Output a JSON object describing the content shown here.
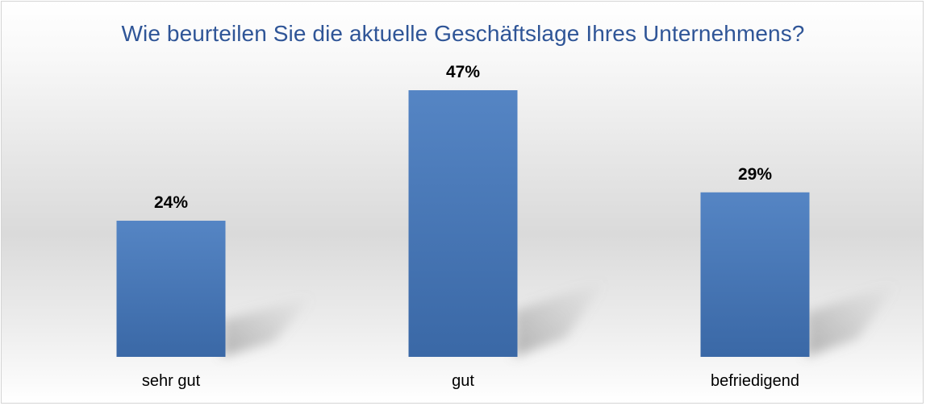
{
  "chart_data": {
    "type": "bar",
    "title": "Wie beurteilen Sie die aktuelle Geschäftslage Ihres Unternehmens?",
    "categories": [
      "sehr gut",
      "gut",
      "befriedigend"
    ],
    "values": [
      24,
      47,
      29
    ],
    "data_labels": [
      "24%",
      "47%",
      "29%"
    ],
    "unit": "%",
    "ylim": [
      0,
      48
    ],
    "grid": false,
    "legend": "none",
    "colors": {
      "bar_top": "#5585c4",
      "bar_bottom": "#3a68a6",
      "title": "#2f5597"
    }
  }
}
